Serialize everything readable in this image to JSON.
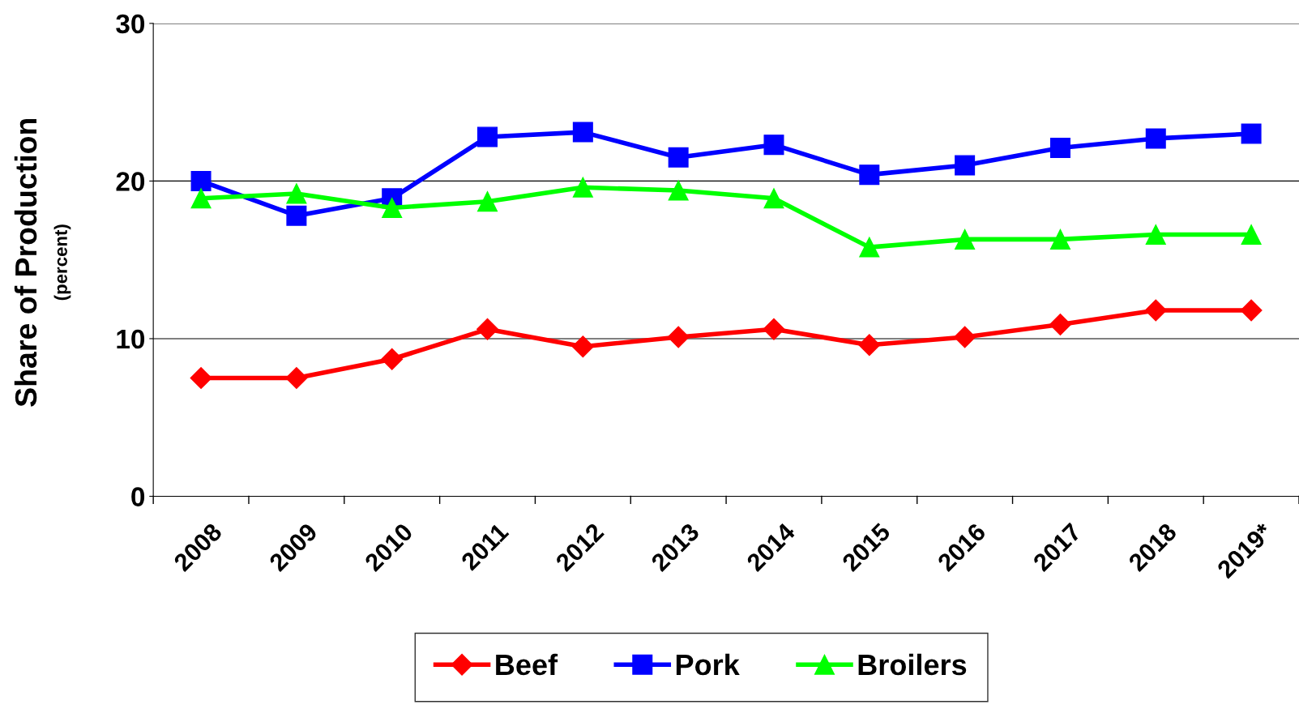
{
  "chart_data": {
    "type": "line",
    "ylabel": "Share of Production\n(percent)",
    "categories": [
      "2008",
      "2009",
      "2010",
      "2011",
      "2012",
      "2013",
      "2014",
      "2015",
      "2016",
      "2017",
      "2018",
      "2019*"
    ],
    "series": [
      {
        "name": "Beef",
        "color": "#ff0000",
        "marker": "diamond",
        "values": [
          7.5,
          7.5,
          8.7,
          10.6,
          9.5,
          10.1,
          10.6,
          9.6,
          10.1,
          10.9,
          11.8,
          11.8
        ]
      },
      {
        "name": "Pork",
        "color": "#0000ff",
        "marker": "square",
        "values": [
          20.0,
          17.8,
          18.9,
          22.8,
          23.1,
          21.5,
          22.3,
          20.4,
          21.0,
          22.1,
          22.7,
          23.0
        ]
      },
      {
        "name": "Broilers",
        "color": "#00ff00",
        "marker": "triangle",
        "values": [
          18.9,
          19.2,
          18.3,
          18.7,
          19.6,
          19.4,
          18.9,
          15.8,
          16.3,
          16.3,
          16.6,
          16.6
        ]
      }
    ],
    "ylim": [
      0,
      30
    ],
    "yticks": [
      0,
      10,
      20,
      30
    ],
    "grid": "y",
    "legend": "bottom",
    "line_style": "solid"
  }
}
